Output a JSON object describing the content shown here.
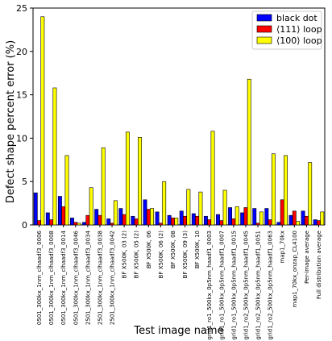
{
  "chart_data": {
    "type": "bar",
    "xlabel": "Test image name",
    "ylabel": "Defect shape percent error (%)",
    "ylim": [
      0,
      25
    ],
    "yticks": [
      0,
      5,
      10,
      15,
      20,
      25
    ],
    "grid": false,
    "legend_position": "top-right",
    "categories": [
      "0501_300kx_1nm_clhaadf3_0006",
      "0501_300kx_1nm_clhaadf3_0008",
      "0501_300kx_1nm_clhaadf3_0014",
      "0501_300kx_1nm_clhaadf3_0046",
      "2501_300kx_1nm_clhaadf3_0034",
      "2501_300kx_1nm_clhaadf3_0038",
      "2501_300kx_1nm_clhaadf3_0042",
      "BF X500K, 03 (2)",
      "BF X500K, 05 (2)",
      "BF X500K, 06",
      "BF X500K, 06 (2)",
      "BF X500K, 08",
      "BF X500K, 09 (3)",
      "BF X500K, 10",
      "grid1_ro1_500kx_0p5nm_haadf1_0003",
      "grid1_ro1_500kx_0p5nm_haadf1_0007",
      "grid1_ro1_500kx_0p5nm_haadf1_0015",
      "grid1_ro2_500kx_0p5nm_haadf1_0045",
      "grid1_ro2_500kx_0p5nm_haadf1_0051",
      "grid1_ro2_500kx_0p5nm_haadf1_0063",
      "map1_70kx",
      "map1_70kx_onzap_CL4100",
      "Per-image average",
      "Full distribution average"
    ],
    "series": [
      {
        "name": "black dot",
        "color": "#0000ff",
        "values": [
          3.7,
          1.4,
          3.3,
          0.8,
          0.3,
          1.8,
          0.7,
          1.9,
          1.0,
          2.9,
          1.5,
          1.1,
          1.6,
          1.3,
          1.0,
          1.2,
          2.0,
          1.4,
          1.9,
          1.9,
          0.3,
          1.1,
          1.6,
          0.6
        ]
      },
      {
        "name": "⟨111⟩ loop",
        "color": "#ff0000",
        "values": [
          0.5,
          0.6,
          2.1,
          0.3,
          1.1,
          1.1,
          0.2,
          1.2,
          0.7,
          1.8,
          0.2,
          0.8,
          1.0,
          1.0,
          0.6,
          0.5,
          0.7,
          2.0,
          0.2,
          0.6,
          2.9,
          1.6,
          1.0,
          0.5
        ]
      },
      {
        "name": "⟨100⟩ loop",
        "color": "#ffff00",
        "values": [
          24.0,
          15.8,
          8.0,
          0.2,
          4.3,
          8.9,
          2.8,
          10.7,
          10.1,
          1.9,
          5.0,
          0.8,
          4.1,
          3.8,
          10.8,
          4.0,
          2.1,
          16.8,
          1.5,
          8.2,
          8.0,
          0.4,
          7.2,
          1.5
        ]
      }
    ]
  }
}
